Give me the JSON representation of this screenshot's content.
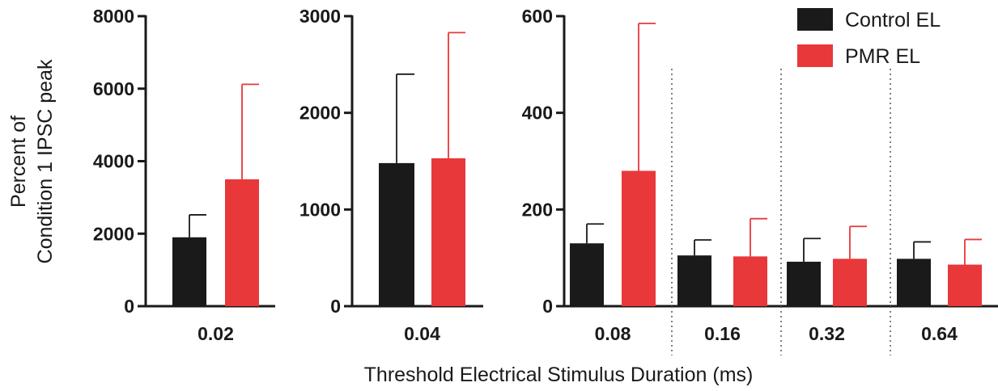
{
  "chart_data": {
    "type": "bar",
    "ylabel_line1": "Percent of",
    "ylabel_line2": "Condition 1 IPSC peak",
    "xlabel": "Threshold Electrical Stimulus Duration (ms)",
    "legend": [
      {
        "name": "Control EL",
        "color": "#1a1a1a"
      },
      {
        "name": "PMR EL",
        "color": "#e8383a"
      }
    ],
    "legend_position": "top-right",
    "grid": false,
    "panels": [
      {
        "ylim": [
          0,
          8000
        ],
        "yticks": [
          "0",
          "2000",
          "4000",
          "6000",
          "8000"
        ],
        "ytick_values": [
          0,
          2000,
          4000,
          6000,
          8000
        ],
        "categories": [
          "0.02"
        ],
        "series": [
          {
            "name": "Control EL",
            "values": [
              1900
            ],
            "errors": [
              620
            ]
          },
          {
            "name": "PMR EL",
            "values": [
              3500
            ],
            "errors": [
              2620
            ]
          }
        ]
      },
      {
        "ylim": [
          0,
          3000
        ],
        "yticks": [
          "0",
          "1000",
          "2000",
          "3000"
        ],
        "ytick_values": [
          0,
          1000,
          2000,
          3000
        ],
        "categories": [
          "0.04"
        ],
        "series": [
          {
            "name": "Control EL",
            "values": [
              1480
            ],
            "errors": [
              920
            ]
          },
          {
            "name": "PMR EL",
            "values": [
              1530
            ],
            "errors": [
              1300
            ]
          }
        ]
      },
      {
        "ylim": [
          0,
          600
        ],
        "yticks": [
          "0",
          "200",
          "400",
          "600"
        ],
        "ytick_values": [
          0,
          200,
          400,
          600
        ],
        "categories": [
          "0.08",
          "0.16",
          "0.32",
          "0.64"
        ],
        "series": [
          {
            "name": "Control EL",
            "values": [
              130,
              105,
              92,
              98
            ],
            "errors": [
              40,
              32,
              48,
              35
            ]
          },
          {
            "name": "PMR EL",
            "values": [
              280,
              103,
              98,
              86
            ],
            "errors": [
              305,
              78,
              67,
              52
            ]
          }
        ]
      }
    ]
  }
}
